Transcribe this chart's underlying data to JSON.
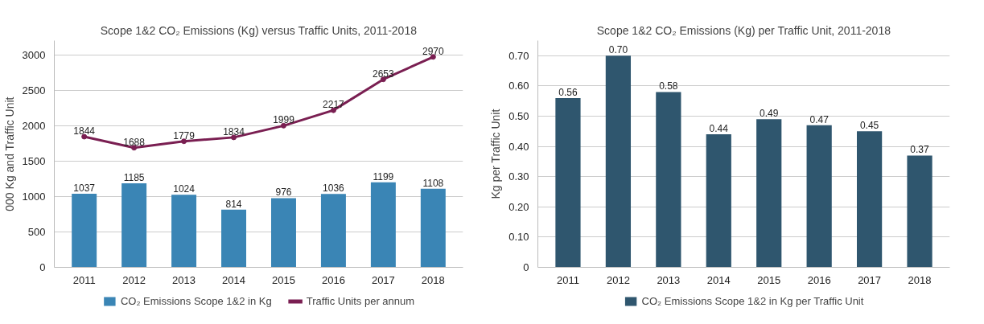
{
  "chart_data": [
    {
      "type": "bar",
      "title": "Scope 1&2 CO₂ Emissions (Kg) versus Traffic Units, 2011-2018",
      "ylabel": "000 Kg and Traffic Unit",
      "categories": [
        "2011",
        "2012",
        "2013",
        "2014",
        "2015",
        "2016",
        "2017",
        "2018"
      ],
      "series": [
        {
          "name": "CO₂ Emissions Scope 1&2 in Kg",
          "color": "#3a85b5",
          "values": [
            1037,
            1185,
            1024,
            814,
            976,
            1036,
            1199,
            1108
          ]
        },
        {
          "name": "Traffic Units per annum",
          "type": "line",
          "color": "#7a1f52",
          "marker": "circle",
          "values": [
            1844,
            1688,
            1779,
            1834,
            1999,
            2217,
            2653,
            2970
          ]
        }
      ],
      "ylim": [
        0,
        3200
      ],
      "yticks": [
        0,
        500,
        1000,
        1500,
        2000,
        2500,
        3000
      ],
      "grid": "y",
      "legend": "bottom",
      "data_labels": true
    },
    {
      "type": "bar",
      "title": "Scope 1&2 CO₂ Emissions (Kg) per Traffic Unit, 2011-2018",
      "ylabel": "Kg per Traffic Unit",
      "categories": [
        "2011",
        "2012",
        "2013",
        "2014",
        "2015",
        "2016",
        "2017",
        "2018"
      ],
      "series": [
        {
          "name": "CO₂ Emissions Scope 1&2 in Kg per Traffic Unit",
          "color": "#2f566e",
          "values": [
            0.56,
            0.7,
            0.58,
            0.44,
            0.49,
            0.47,
            0.45,
            0.37
          ]
        }
      ],
      "value_labels": [
        [
          "0.56",
          "0.70",
          "0.58",
          "0.44",
          "0.49",
          "0.47",
          "0.45",
          "0.37"
        ]
      ],
      "ylim": [
        0,
        0.75
      ],
      "yticks": [
        0,
        {
          "value": 0.1,
          "label": "0.10"
        },
        {
          "value": 0.2,
          "label": "0.20"
        },
        {
          "value": 0.3,
          "label": "0.30"
        },
        {
          "value": 0.4,
          "label": "0.40"
        },
        {
          "value": 0.5,
          "label": "0.50"
        },
        {
          "value": 0.6,
          "label": "0.60"
        },
        {
          "value": 0.7,
          "label": "0.70"
        }
      ],
      "grid": "y",
      "legend": "bottom"
    }
  ]
}
